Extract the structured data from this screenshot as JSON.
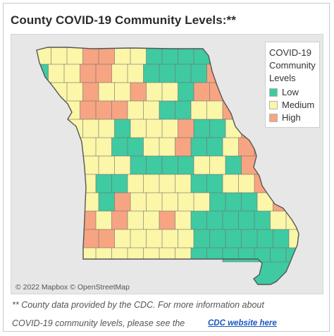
{
  "title": "County COVID-19 Community Levels:**",
  "legend": {
    "title_lines": [
      "COVID-19",
      "Community",
      "Levels"
    ],
    "items": [
      {
        "label": "Low",
        "color": "#3fcaa2"
      },
      {
        "label": "Medium",
        "color": "#fbf6a8"
      },
      {
        "label": "High",
        "color": "#f7a482"
      }
    ]
  },
  "map": {
    "attribution": "© 2022 Mapbox  © OpenStreetMap",
    "colors": {
      "low": "#3fcaa2",
      "medium": "#fbf6a8",
      "high": "#f7a482",
      "background": "#e7e7e7",
      "outline": "#6f6f6f"
    }
  },
  "footnote": {
    "line1": "** County data provided by the CDC. For  more information about",
    "line2": "COVID-19 community levels, please see the",
    "link_text": "CDC website here"
  }
}
